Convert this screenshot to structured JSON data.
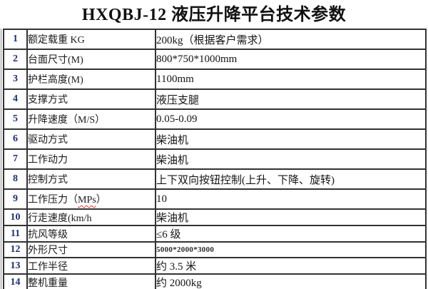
{
  "title": "HXQBJ-12 液压升降平台技术参数",
  "table": {
    "rows": [
      {
        "num": "1",
        "name": "额定载重 KG",
        "value": "200kg（根据客户需求）"
      },
      {
        "num": "2",
        "name": "台面尺寸(M)",
        "value": "800*750*1000mm"
      },
      {
        "num": "3",
        "name": "护栏高度(M)",
        "value": "1100mm"
      },
      {
        "num": "4",
        "name": "支撑方式",
        "value": "液压支腿"
      },
      {
        "num": "5",
        "name": "升降速度（M/S）",
        "value": "0.05-0.09"
      },
      {
        "num": "6",
        "name": "驱动方式",
        "value": "柴油机"
      },
      {
        "num": "7",
        "name": "工作动力",
        "value": "柴油机"
      },
      {
        "num": "8",
        "name": "控制方式",
        "value": "上下双向按钮控制(上升、下降、旋转)"
      },
      {
        "num": "9",
        "name": "工作压力（MPs）",
        "value": "10",
        "wavy": "MPs"
      },
      {
        "num": "10",
        "name": "行走速度(km/h",
        "value": "柴油机"
      },
      {
        "num": "11",
        "name": "抗风等级",
        "value": "≤6 级"
      },
      {
        "num": "12",
        "name": "外形尺寸",
        "value": "5000*2000*3000",
        "small_value": true
      },
      {
        "num": "13",
        "name": "工作半径",
        "value": "约 3.5 米"
      },
      {
        "num": "14",
        "name": "整机重量",
        "value": "约 2000kg"
      }
    ]
  },
  "colors": {
    "row_number": "#1f3070",
    "border": "#333333",
    "spellcheck_underline": "#e23b2e"
  }
}
